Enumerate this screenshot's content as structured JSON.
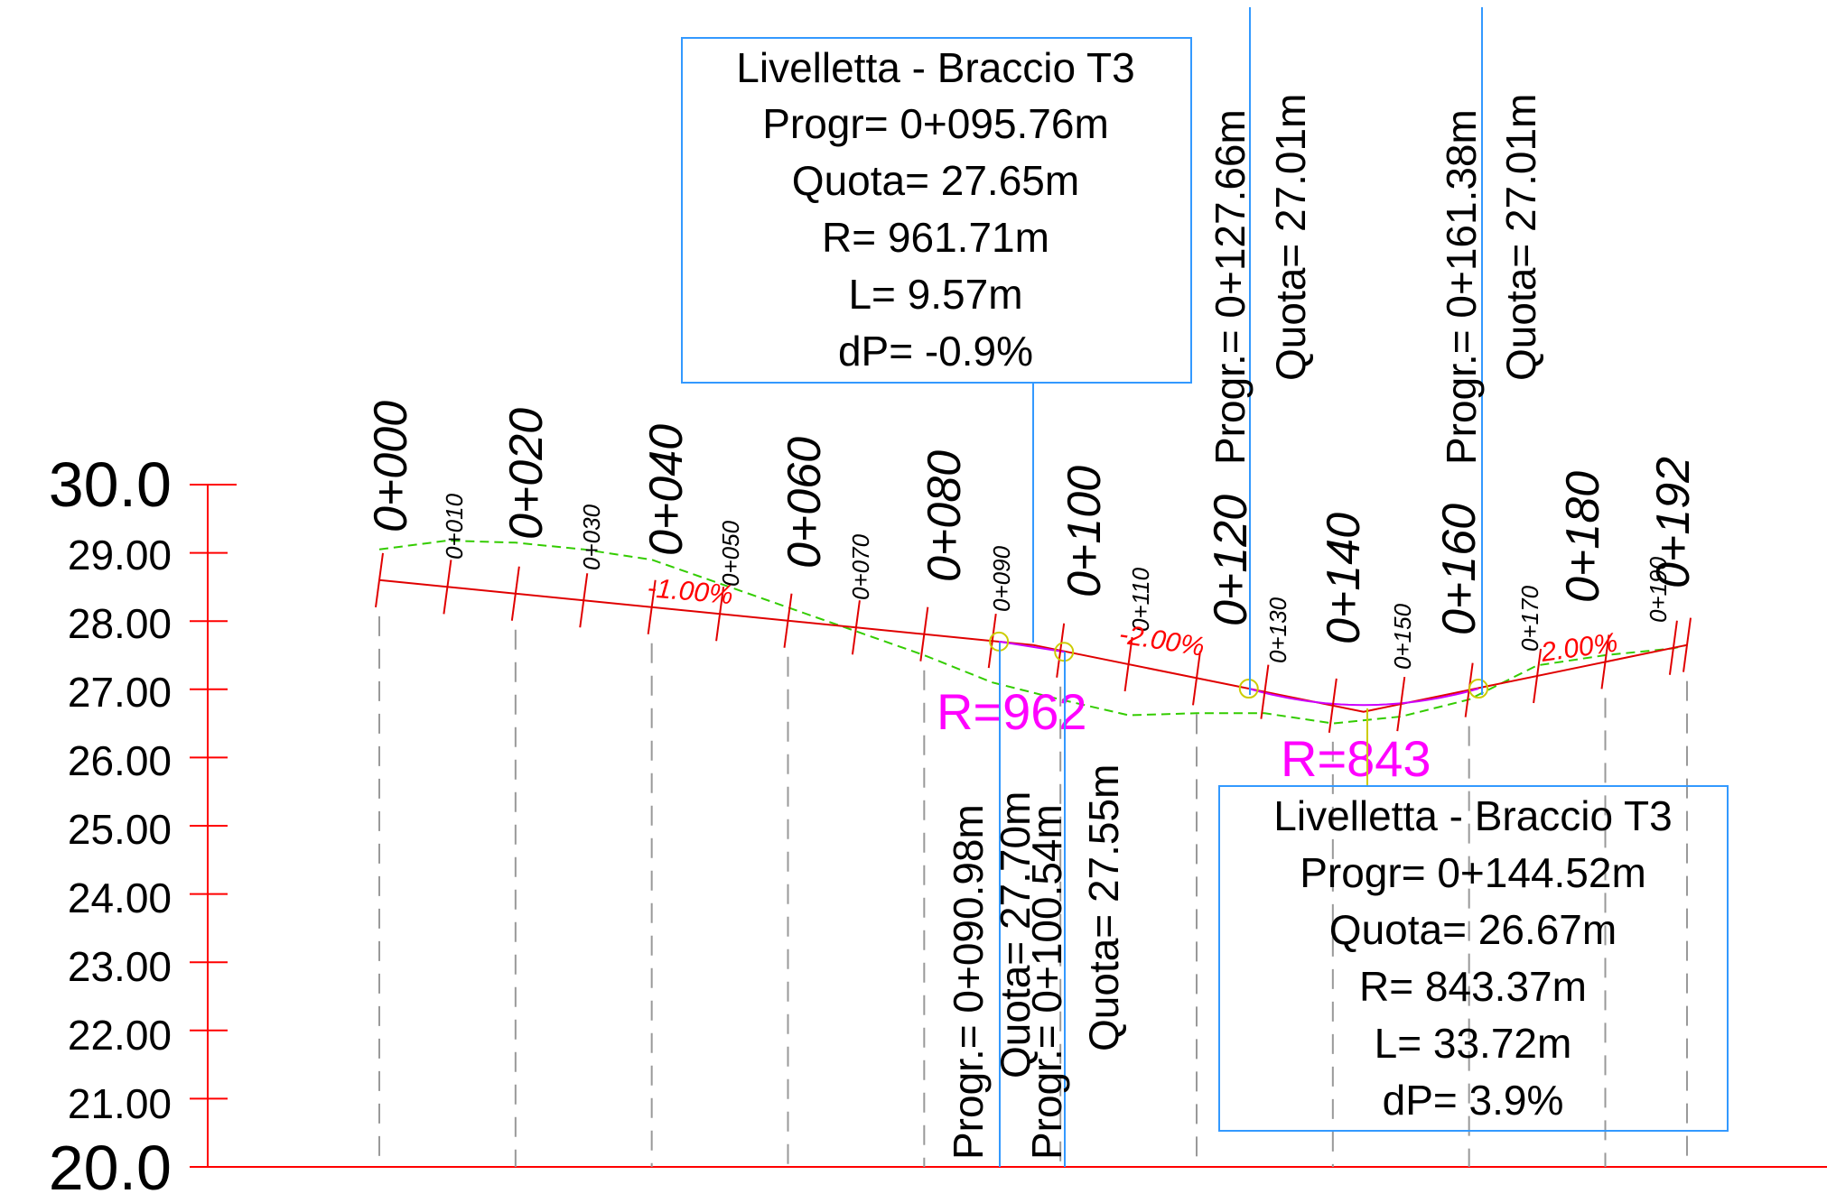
{
  "axis": {
    "y_labels": [
      {
        "value": 30,
        "label": "30.0",
        "big": true
      },
      {
        "value": 29,
        "label": "29.00"
      },
      {
        "value": 28,
        "label": "28.00"
      },
      {
        "value": 27,
        "label": "27.00"
      },
      {
        "value": 26,
        "label": "26.00"
      },
      {
        "value": 25,
        "label": "25.00"
      },
      {
        "value": 24,
        "label": "24.00"
      },
      {
        "value": 23,
        "label": "23.00"
      },
      {
        "value": 22,
        "label": "22.00"
      },
      {
        "value": 21,
        "label": "21.00"
      },
      {
        "value": 20,
        "label": "20.0",
        "big": true
      }
    ]
  },
  "chainages_major": [
    {
      "s": 0,
      "label": "0+000"
    },
    {
      "s": 20,
      "label": "0+020"
    },
    {
      "s": 40,
      "label": "0+040"
    },
    {
      "s": 60,
      "label": "0+060"
    },
    {
      "s": 80,
      "label": "0+080"
    },
    {
      "s": 100,
      "label": "0+100"
    },
    {
      "s": 120,
      "label": "0+120"
    },
    {
      "s": 140,
      "label": "0+140"
    },
    {
      "s": 160,
      "label": "0+160"
    },
    {
      "s": 180,
      "label": "0+180"
    },
    {
      "s": 192,
      "label": "0+192"
    }
  ],
  "chainages_minor": [
    {
      "s": 10,
      "label": "0+010"
    },
    {
      "s": 30,
      "label": "0+030"
    },
    {
      "s": 50,
      "label": "0+050"
    },
    {
      "s": 70,
      "label": "0+070"
    },
    {
      "s": 90,
      "label": "0+090"
    },
    {
      "s": 110,
      "label": "0+110"
    },
    {
      "s": 130,
      "label": "0+130"
    },
    {
      "s": 150,
      "label": "0+150"
    },
    {
      "s": 170,
      "label": "0+170"
    },
    {
      "s": 190,
      "label": "0+190"
    }
  ],
  "grades": [
    {
      "text": "-1.00%",
      "s": 46,
      "z": 28.3
    },
    {
      "text": "-2.00%",
      "s": 115,
      "z": 27.5
    },
    {
      "text": "2.00%",
      "s": 178,
      "z": 27.35
    }
  ],
  "profile": {
    "design_line": [
      [
        0,
        28.6
      ],
      [
        96,
        27.65
      ],
      [
        144.5,
        26.67
      ],
      [
        192,
        27.65
      ]
    ],
    "ground_line": [
      [
        0,
        29.05
      ],
      [
        10,
        29.18
      ],
      [
        20,
        29.15
      ],
      [
        30,
        29.05
      ],
      [
        40,
        28.9
      ],
      [
        50,
        28.55
      ],
      [
        60,
        28.2
      ],
      [
        70,
        27.85
      ],
      [
        80,
        27.5
      ],
      [
        90,
        27.1
      ],
      [
        100,
        26.85
      ],
      [
        110,
        26.62
      ],
      [
        120,
        26.65
      ],
      [
        130,
        26.65
      ],
      [
        140,
        26.5
      ],
      [
        150,
        26.6
      ],
      [
        160,
        26.85
      ],
      [
        170,
        27.35
      ],
      [
        180,
        27.5
      ],
      [
        190,
        27.6
      ],
      [
        192,
        27.65
      ]
    ],
    "curve_1": [
      [
        90.98,
        27.7
      ],
      [
        100.54,
        27.55
      ]
    ],
    "curve_2": [
      [
        127.66,
        27.01
      ],
      [
        144.52,
        26.69
      ],
      [
        161.38,
        27.01
      ]
    ]
  },
  "radius_labels": [
    {
      "text": "R=962"
    },
    {
      "text": "R=843"
    }
  ],
  "info_boxes": [
    {
      "lines": [
        "Livelletta - Braccio T3",
        "Progr= 0+095.76m",
        "Quota= 27.65m",
        "R= 961.71m",
        "L= 9.57m",
        "dP= -0.9%"
      ]
    },
    {
      "lines": [
        "Livelletta - Braccio T3",
        "Progr= 0+144.52m",
        "Quota= 26.67m",
        "R= 843.37m",
        "L= 33.72m",
        "dP= 3.9%"
      ]
    }
  ],
  "vertical_labels": [
    {
      "progr": "Progr.= 0+127.66m",
      "quota": "Quota= 27.01m"
    },
    {
      "progr": "Progr.= 0+161.38m",
      "quota": "Quota= 27.01m"
    },
    {
      "progr": "Progr.= 0+090.98m",
      "quota": "Quota= 27.70m"
    },
    {
      "progr": "Progr.= 0+100.54m",
      "quota": "Quota= 27.55m"
    }
  ],
  "colors": {
    "axis": "#ff0000",
    "design": "#e00000",
    "ground": "#33cc00",
    "box_border": "#3399ff",
    "radius": "#ff00ff",
    "curve": "#cc00ff",
    "tangent_points": "#cccc00",
    "stations": "#999999"
  }
}
